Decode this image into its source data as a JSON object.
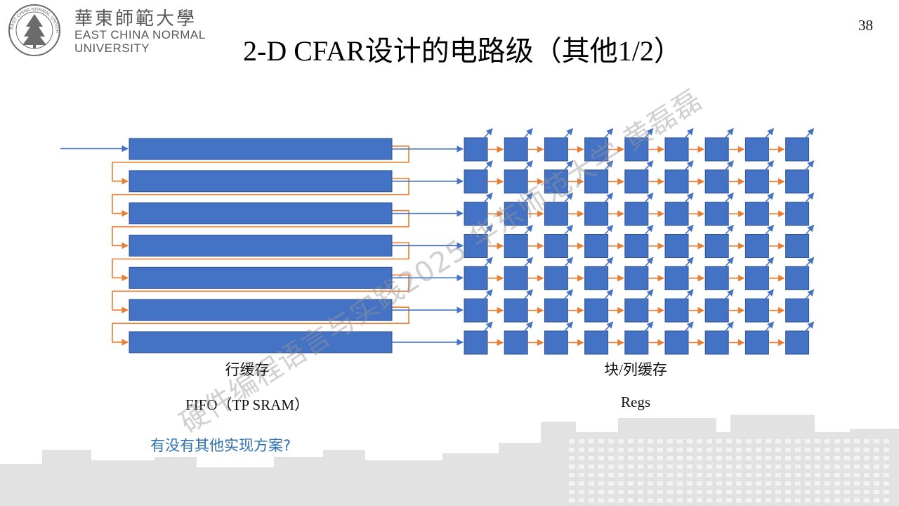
{
  "logo": {
    "chinese_name": "華東師範大學",
    "english_line1": "EAST CHINA NORMAL",
    "english_line2": "UNIVERSITY",
    "seal_text": "EAST CHINA NORMAL UNIVERSITY"
  },
  "slide": {
    "title": "2-D CFAR设计的电路级（其他1/2）",
    "page_number": "38"
  },
  "diagram": {
    "line_buffer_rows": 7,
    "register_rows": 7,
    "register_cols": 9,
    "colors": {
      "block_fill": "#4472c4",
      "block_stroke": "#2f528f",
      "input_line": "#4472c4",
      "feedback_line": "#ed7d31",
      "register_chain_arrow": "#ed7d31",
      "register_output_arrow": "#4472c4"
    },
    "line_buffer_label": "行缓存",
    "line_buffer_sublabel": "FIFO（TP SRAM）",
    "register_label": "块/列缓存",
    "register_sublabel": "Regs"
  },
  "question": "有没有其他实现方案?",
  "watermark": "硬件编程语言与实践2025 华东师范大学 黄磊磊",
  "background": {
    "skyline_color": "#9a9a9a"
  }
}
